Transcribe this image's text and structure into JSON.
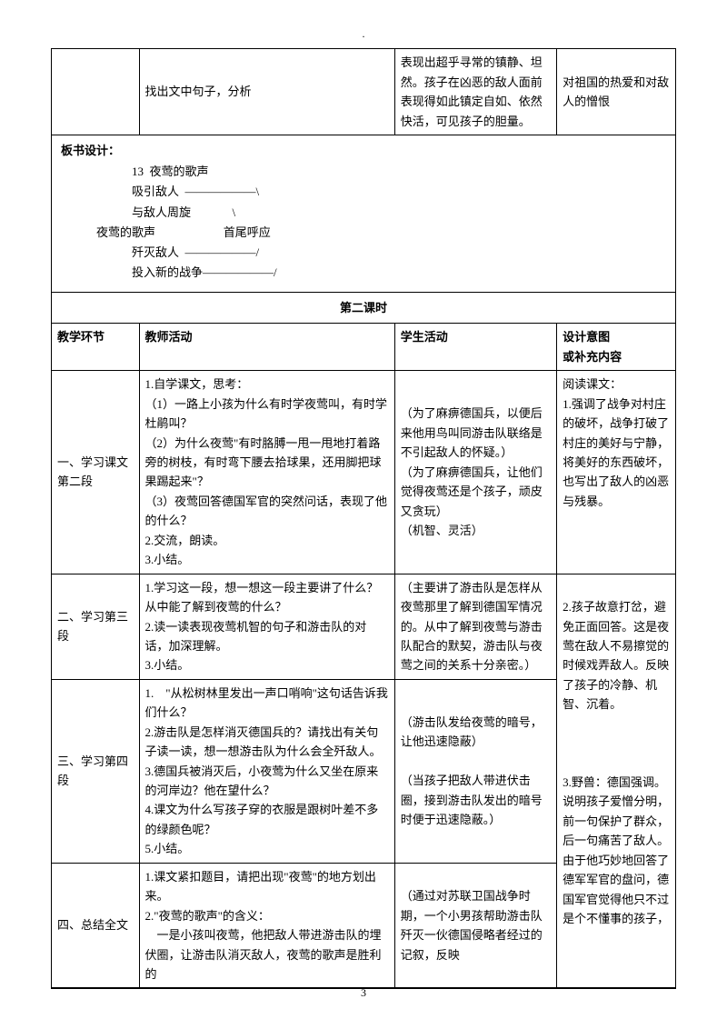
{
  "page_marker": ".",
  "page_number": "3",
  "top_row": {
    "col1": "",
    "col2": "找出文中句子，分析",
    "col3": "表现出超乎寻常的镇静、坦然。孩子在凶恶的敌人面前表现得如此镇定自如、依然快活，可见孩子的胆量。",
    "col4": "对祖国的热爱和对敌人的憎恨"
  },
  "board": {
    "title": "板书设计：",
    "lines": "                        13  夜莺的歌声\n                        吸引敌人  ——————\\\n                        与敌人周旋              \\\n            夜莺的歌声                       首尾呼应\n                        歼灭敌人  ——————/\n                        投入新的战争——————/"
  },
  "lesson_title": "第二课时",
  "headers": {
    "h1": "教学环节",
    "h2": "教师活动",
    "h3": "学生活动",
    "h4": "设计意图\n或补充内容"
  },
  "rows": [
    {
      "c1": "一、学习课文第二段",
      "c2": "1.自学课文，思考：\n（1）一路上小孩为什么有时学夜莺叫，有时学杜鹃叫？\n（2）为什么夜莺\"有时胳膊一甩一甩地打着路旁的树枝，有时弯下腰去拾球果，还用脚把球果踢起来\"？\n（3）夜莺回答德国军官的突然问话，表现了他的什么？\n2.交流，朗读。\n3.小结。",
      "c3": "（为了麻痹德国兵，以便后来他用鸟叫同游击队联络是不引起敌人的怀疑。）\n（为了麻痹德国兵，让他们觉得夜莺还是个孩子，顽皮又贪玩）\n（机智、灵活）",
      "c4": "阅读课文：\n1.强调了战争对村庄的破坏，战争打破了村庄的美好与宁静，将美好的东西破坏，也写出了敌人的凶恶与残暴。"
    },
    {
      "c1": "二、学习第三段",
      "c2": "1.学习这一段，想一想这一段主要讲了什么？从中能了解到夜莺的什么？\n2.读一读表现夜莺机智的句子和游击队的对话，加深理解。\n3.小结。",
      "c3": "（主要讲了游击队是怎样从夜莺那里了解到德国军情况的。从中了解到夜莺与游击队配合的默契，游击队与夜莺之间的关系十分亲密。）",
      "c4": "2.孩子故意打岔，避免正面回答。这是夜莺在敌人不易擦觉的时候戏弄敌人。反映了孩子的冷静、机智、沉着。"
    },
    {
      "c1": "三、学习第四段",
      "c2": "1.　\"从松树林里发出一声口哨响\"这句话告诉我们什么？\n2.游击队是怎样消灭德国兵的？请找出有关句子读一读，想一想游击队为什么会全歼敌人。\n3.德国兵被消灭后，小夜莺为什么又坐在原来的河岸边？他在望什么？\n4.课文为什么写孩子穿的衣服是跟树叶差不多的绿颜色呢？\n5.小结。",
      "c3": "（游击队发给夜莺的暗号，让他迅速隐蔽）\n\n（当孩子把敌人带进伏击圈，接到游击队发出的暗号时便于迅速隐蔽。）",
      "c4": "3.野兽：德国强调。\n说明孩子爱憎分明，前一句保护了群众，后一句痛苦了敌人。由于他巧妙地回答了德军军官的盘问，德国军官觉得他只不过是个不懂事的孩子，"
    },
    {
      "c1": "四、总结全文",
      "c2": "1.课文紧扣题目，请把出现\"夜莺\"的地方划出来。\n2.\"夜莺的歌声\"的含义：\n　一是小孩叫夜莺，他把敌人带进游击队的埋伏圈，让游击队消灭敌人，夜莺的歌声是胜利的",
      "c3": "（通过对苏联卫国战争时期，一个小男孩帮助游击队歼灭一伙德国侵略者经过的记叙，反映",
      "c4": ""
    }
  ]
}
